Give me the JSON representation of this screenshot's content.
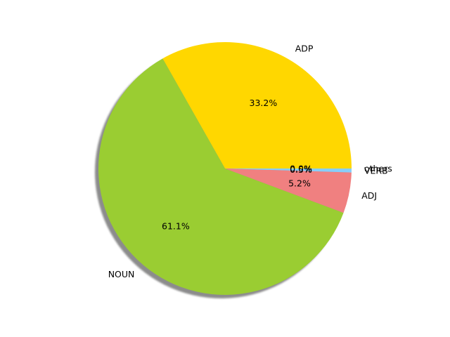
{
  "chart_data": {
    "type": "pie",
    "title": "",
    "shadow": true,
    "start_angle_deg": 0,
    "direction": "counterclockwise",
    "slices": [
      {
        "label": "ADP",
        "value": 33.2,
        "pct_label": "33.2%",
        "color": "#FFD700"
      },
      {
        "label": "NOUN",
        "value": 61.1,
        "pct_label": "61.1%",
        "color": "#9ACD32"
      },
      {
        "label": "ADJ",
        "value": 5.2,
        "pct_label": "5.2%",
        "color": "#F08080"
      },
      {
        "label": "VERB",
        "value": 0.5,
        "pct_label": "0.5%",
        "color": "#87CEFA"
      },
      {
        "label": "others",
        "value": 0.0,
        "pct_label": "0.0%",
        "color": "#87CEEB"
      }
    ]
  }
}
